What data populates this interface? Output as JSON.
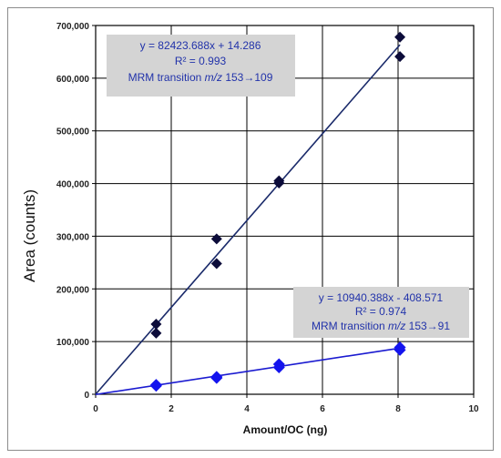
{
  "chart_data": {
    "type": "scatter",
    "xlabel": "Amount/OC (ng)",
    "ylabel": "Area (counts)",
    "xlim": [
      0,
      10
    ],
    "ylim": [
      0,
      700000
    ],
    "x_ticks": [
      "0",
      "2",
      "4",
      "6",
      "8",
      "10"
    ],
    "y_ticks": [
      "0",
      "100,000",
      "200,000",
      "300,000",
      "400,000",
      "500,000",
      "600,000",
      "700,000"
    ],
    "grid": true,
    "series": [
      {
        "marker_color": "#0c0c3a",
        "line_color": "#1a2a6a",
        "points": [
          {
            "x": 1.6,
            "y": 133000
          },
          {
            "x": 1.6,
            "y": 116000
          },
          {
            "x": 3.2,
            "y": 295000
          },
          {
            "x": 3.2,
            "y": 248000
          },
          {
            "x": 4.85,
            "y": 405000
          },
          {
            "x": 4.85,
            "y": 401000
          },
          {
            "x": 8.05,
            "y": 678000
          },
          {
            "x": 8.05,
            "y": 641000
          }
        ],
        "fit": {
          "slope": 82423.688,
          "intercept": 14.286,
          "x_end": 8.05
        },
        "annotation": {
          "line1": "y = 82423.688x  + 14.286",
          "line2": "R² = 0.993",
          "line3_prefix": "MRM transition ",
          "line3_italic": "m/z",
          "line3_suffix": " 153→109"
        }
      },
      {
        "marker_color": "#1414ee",
        "line_color": "#1a1ad0",
        "points": [
          {
            "x": 1.6,
            "y": 18000
          },
          {
            "x": 1.6,
            "y": 16000
          },
          {
            "x": 3.2,
            "y": 33000
          },
          {
            "x": 3.2,
            "y": 31000
          },
          {
            "x": 4.85,
            "y": 57000
          },
          {
            "x": 4.85,
            "y": 51000
          },
          {
            "x": 8.05,
            "y": 89000
          },
          {
            "x": 8.05,
            "y": 84000
          }
        ],
        "fit": {
          "slope": 10940.388,
          "intercept": -408.571,
          "x_end": 8.05
        },
        "annotation": {
          "line1": "y = 10940.388x  - 408.571",
          "line2": "R² = 0.974",
          "line3_prefix": "MRM transition  ",
          "line3_italic": "m/z",
          "line3_suffix": " 153→91"
        }
      }
    ]
  }
}
